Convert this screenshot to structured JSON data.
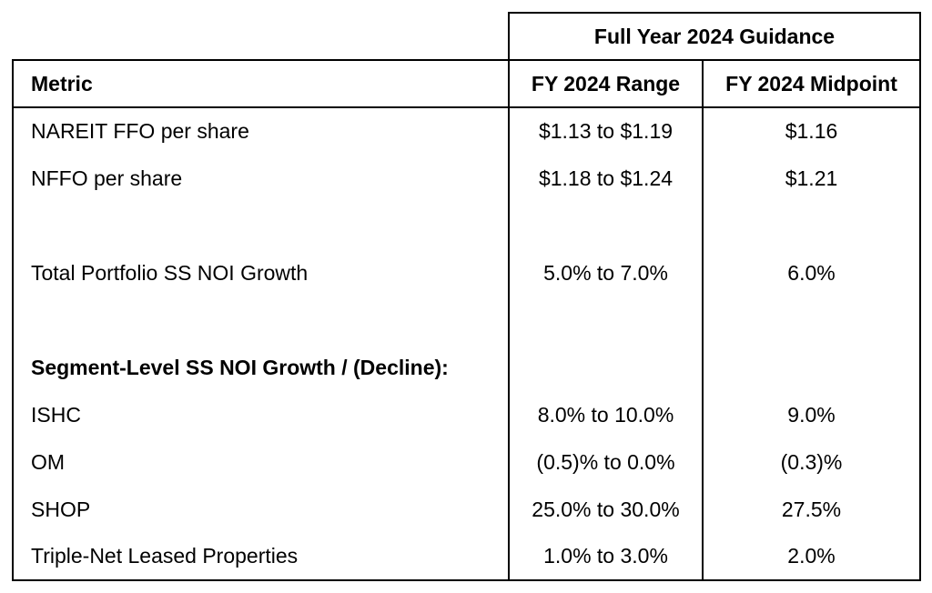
{
  "table": {
    "spanner_header": "Full Year 2024 Guidance",
    "columns": [
      "Metric",
      "FY 2024 Range",
      "FY 2024 Midpoint"
    ],
    "rows": [
      {
        "metric": "NAREIT FFO per share",
        "range": "$1.13 to $1.19",
        "midpoint": "$1.16",
        "style": "normal"
      },
      {
        "metric": "NFFO per share",
        "range": "$1.18 to $1.24",
        "midpoint": "$1.21",
        "style": "normal"
      },
      {
        "metric": "",
        "range": "",
        "midpoint": "",
        "style": "spacer"
      },
      {
        "metric": "Total Portfolio SS NOI Growth",
        "range": "5.0% to 7.0%",
        "midpoint": "6.0%",
        "style": "normal"
      },
      {
        "metric": "",
        "range": "",
        "midpoint": "",
        "style": "spacer"
      },
      {
        "metric": "Segment-Level SS NOI Growth / (Decline):",
        "range": "",
        "midpoint": "",
        "style": "section"
      },
      {
        "metric": "ISHC",
        "range": "8.0% to 10.0%",
        "midpoint": "9.0%",
        "style": "normal"
      },
      {
        "metric": "OM",
        "range": "(0.5)% to 0.0%",
        "midpoint": "(0.3)%",
        "style": "normal"
      },
      {
        "metric": "SHOP",
        "range": "25.0% to 30.0%",
        "midpoint": "27.5%",
        "style": "normal"
      },
      {
        "metric": "Triple-Net Leased Properties",
        "range": "1.0% to 3.0%",
        "midpoint": "2.0%",
        "style": "normal"
      }
    ],
    "colors": {
      "border": "#000000",
      "text": "#000000",
      "background": "#ffffff"
    }
  }
}
